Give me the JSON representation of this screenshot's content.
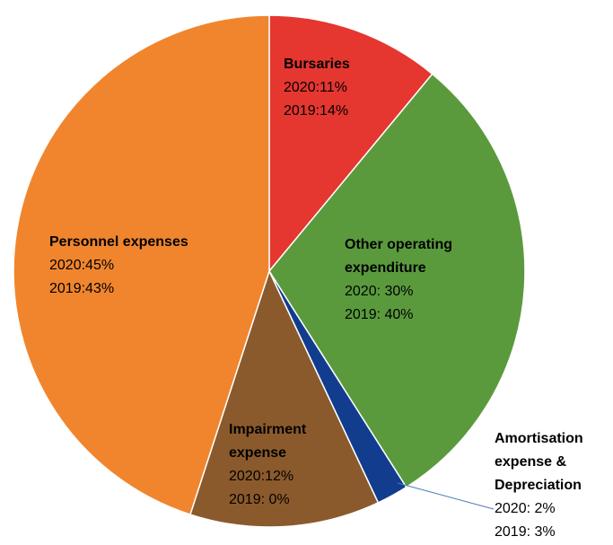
{
  "chart_data": {
    "type": "pie",
    "categories": [
      "Bursaries",
      "Other operating expenditure",
      "Amortisation expense & Depreciation",
      "Impairment expense",
      "Personnel expenses"
    ],
    "colors": [
      "#e53630",
      "#5a9a3d",
      "#123d8e",
      "#8b5a2c",
      "#f0852e"
    ],
    "series": [
      {
        "values": [
          11,
          30,
          2,
          12,
          45
        ],
        "value_labels": [
          "2020:11%",
          "2020: 30%",
          "2020: 2%",
          "2020:12%",
          "2020:45%"
        ]
      },
      {
        "values": [
          14,
          40,
          3,
          0,
          43
        ],
        "value_labels": [
          "2019:14%",
          "2019: 40%",
          "2019: 3%",
          "2019: 0%",
          "2019:43%"
        ]
      }
    ]
  }
}
